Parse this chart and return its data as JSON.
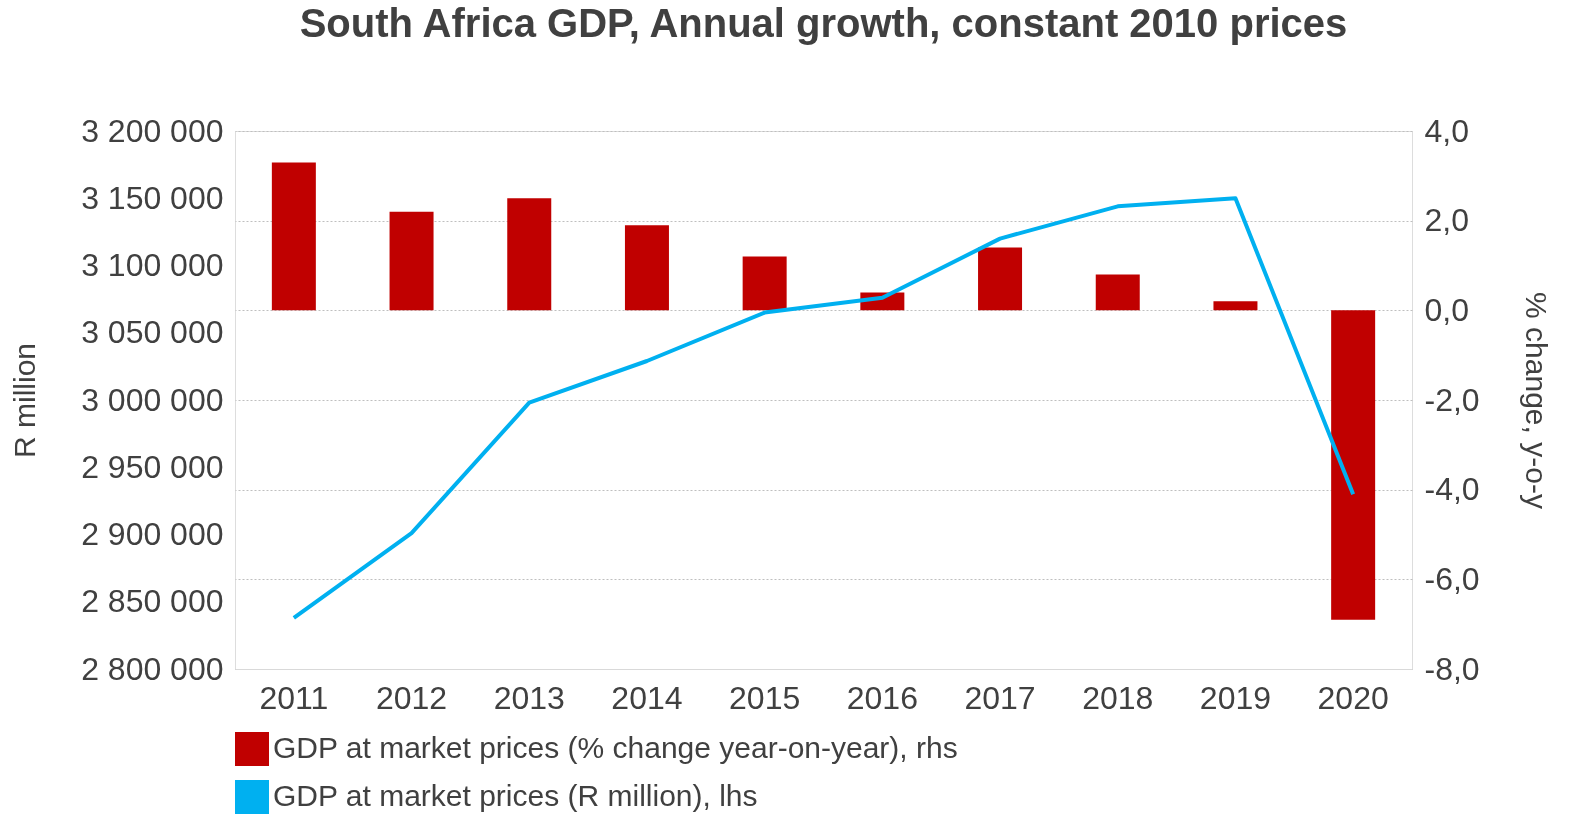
{
  "chart_data": {
    "type": "bar",
    "title": "South Africa GDP, Annual growth, constant 2010 prices",
    "categories": [
      "2011",
      "2012",
      "2013",
      "2014",
      "2015",
      "2016",
      "2017",
      "2018",
      "2019",
      "2020"
    ],
    "series": [
      {
        "name": "GDP at market prices (% change year-on-year), rhs",
        "axis": "y2",
        "color": "#c00000",
        "values": [
          3.3,
          2.2,
          2.5,
          1.9,
          1.2,
          0.4,
          1.4,
          0.8,
          0.2,
          -6.9
        ]
      },
      {
        "name": "GDP at market prices (R million), lhs",
        "type": "line",
        "color": "#00b0f0",
        "values": [
          2838000,
          2901000,
          2998000,
          3029000,
          3065000,
          3076000,
          3120000,
          3144000,
          3150000,
          2930000
        ]
      }
    ],
    "ylabel": "R million",
    "y2label": "% change, y-o-y",
    "ylim": [
      2800000,
      3200000
    ],
    "yticks": [
      {
        "value": 2800000,
        "label": "2 800 000"
      },
      {
        "value": 2850000,
        "label": "2 850 000"
      },
      {
        "value": 2900000,
        "label": "2 900 000"
      },
      {
        "value": 2950000,
        "label": "2 950 000"
      },
      {
        "value": 3000000,
        "label": "3 000 000"
      },
      {
        "value": 3050000,
        "label": "3 050 000"
      },
      {
        "value": 3100000,
        "label": "3 100 000"
      },
      {
        "value": 3150000,
        "label": "3 150 000"
      },
      {
        "value": 3200000,
        "label": "3 200 000"
      }
    ],
    "y2lim": [
      -8,
      4
    ],
    "y2ticks": [
      {
        "value": -8,
        "label": "-8,0"
      },
      {
        "value": -6,
        "label": "-6,0"
      },
      {
        "value": -4,
        "label": "-4,0"
      },
      {
        "value": -2,
        "label": "-2,0"
      },
      {
        "value": 0,
        "label": "0,0"
      },
      {
        "value": 2,
        "label": "2,0"
      },
      {
        "value": 4,
        "label": "4,0"
      }
    ],
    "grid": "y2",
    "legend": "bottom",
    "marker": "none",
    "line_style": "solid"
  }
}
